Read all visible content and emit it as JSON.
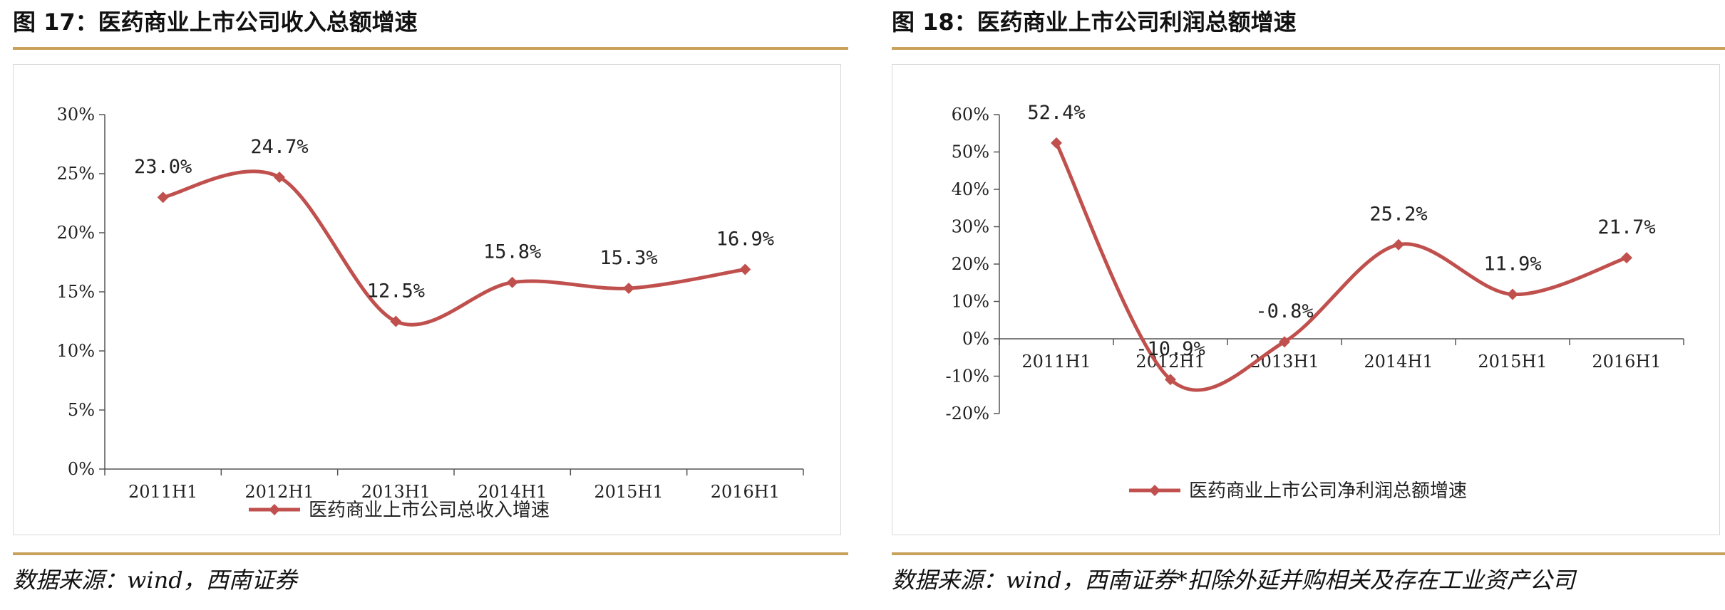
{
  "figures": [
    {
      "title": "图 17：医药商业上市公司收入总额增速",
      "source": "数据来源：wind，西南证券",
      "chart_data": {
        "type": "line",
        "title": "",
        "xlabel": "",
        "ylabel": "",
        "categories": [
          "2011H1",
          "2012H1",
          "2013H1",
          "2014H1",
          "2015H1",
          "2016H1"
        ],
        "series": [
          {
            "name": "医药商业上市公司总收入增速",
            "values": [
              23.0,
              24.7,
              12.5,
              15.8,
              15.3,
              16.9
            ],
            "labels": [
              "23.0%",
              "24.7%",
              "12.5%",
              "15.8%",
              "15.3%",
              "16.9%"
            ],
            "color": "#c0504d"
          }
        ],
        "ylim": [
          0,
          30
        ],
        "yticks": [
          0,
          5,
          10,
          15,
          20,
          25,
          30
        ],
        "ytick_labels": [
          "0%",
          "5%",
          "10%",
          "15%",
          "20%",
          "25%",
          "30%"
        ],
        "grid": false,
        "legend": "bottom-center"
      }
    },
    {
      "title": "图 18：医药商业上市公司利润总额增速",
      "source": "数据来源：wind，西南证券*扣除外延并购相关及存在工业资产公司",
      "chart_data": {
        "type": "line",
        "title": "",
        "xlabel": "",
        "ylabel": "",
        "categories": [
          "2011H1",
          "2012H1",
          "2013H1",
          "2014H1",
          "2015H1",
          "2016H1"
        ],
        "series": [
          {
            "name": "医药商业上市公司净利润总额增速",
            "values": [
              52.4,
              -10.9,
              -0.8,
              25.2,
              11.9,
              21.7
            ],
            "labels": [
              "52.4%",
              "-10.9%",
              "-0.8%",
              "25.2%",
              "11.9%",
              "21.7%"
            ],
            "color": "#c0504d"
          }
        ],
        "ylim": [
          -20,
          60
        ],
        "yticks": [
          -20,
          -10,
          0,
          10,
          20,
          30,
          40,
          50,
          60
        ],
        "ytick_labels": [
          "-20%",
          "-10%",
          "0%",
          "10%",
          "20%",
          "30%",
          "40%",
          "50%",
          "60%"
        ],
        "grid": false,
        "legend": "bottom-center"
      }
    }
  ]
}
